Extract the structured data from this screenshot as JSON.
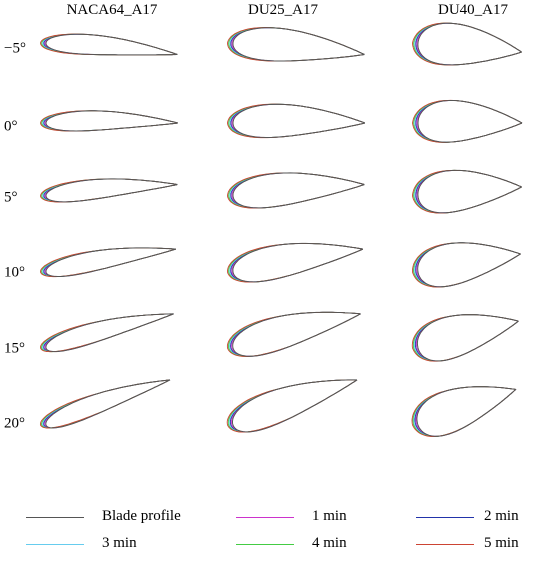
{
  "figure": {
    "column_titles": [
      "NACA64_A17",
      "DU25_A17",
      "DU40_A17"
    ],
    "row_labels": [
      "−5°",
      "0°",
      "5°",
      "10°",
      "15°",
      "20°"
    ],
    "angles_deg": [
      -5,
      0,
      5,
      10,
      15,
      20
    ],
    "airfoils": [
      "NACA64_A17",
      "DU25_A17",
      "DU40_A17"
    ]
  },
  "legend": [
    {
      "label": "Blade profile",
      "color": "#555555"
    },
    {
      "label": "1 min",
      "color": "#cc33cc"
    },
    {
      "label": "2 min",
      "color": "#2233aa"
    },
    {
      "label": "3 min",
      "color": "#66ccee"
    },
    {
      "label": "4 min",
      "color": "#44cc44"
    },
    {
      "label": "5 min",
      "color": "#cc4433"
    }
  ]
}
